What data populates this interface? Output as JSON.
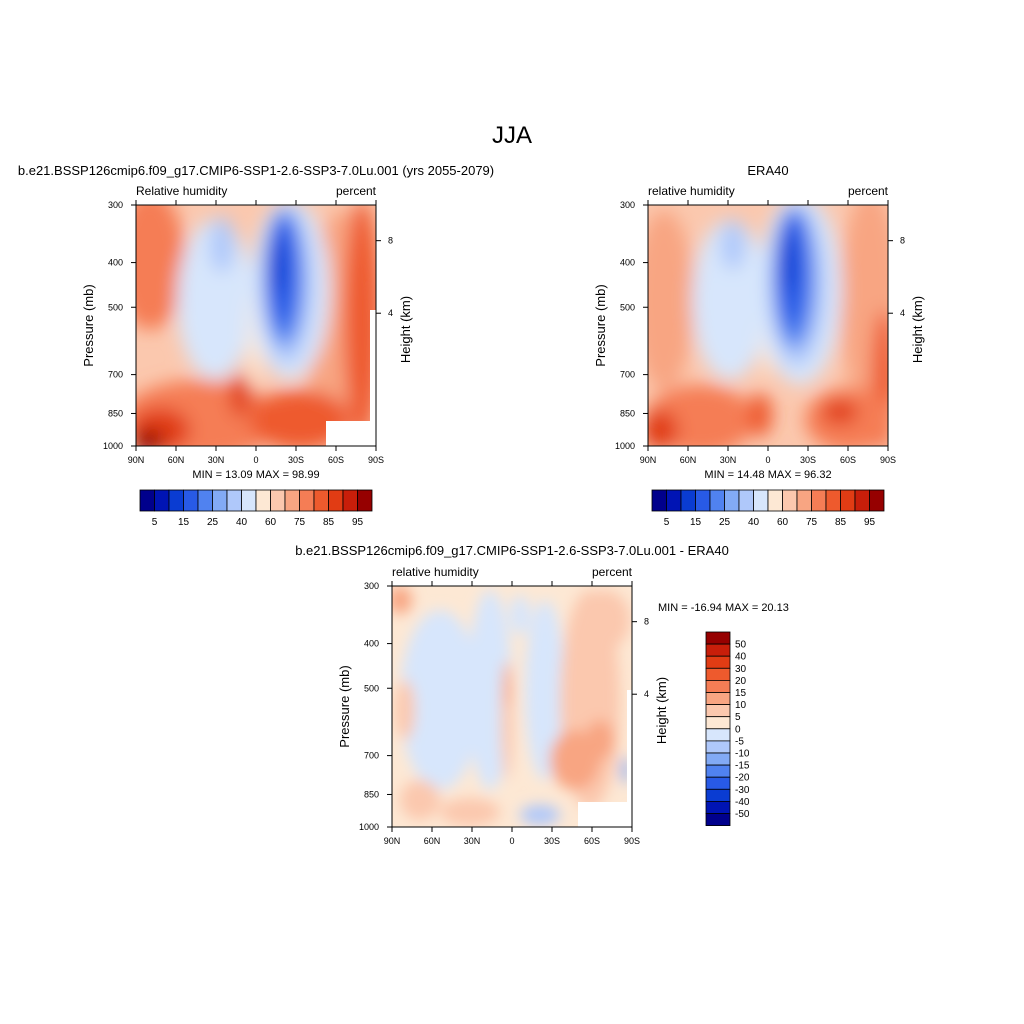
{
  "figure": {
    "title": "JJA"
  },
  "colors": {
    "abs_levels": [
      "#00008c",
      "#0014b4",
      "#0a3cd2",
      "#285ae6",
      "#5082f0",
      "#82aaf5",
      "#afc8fa",
      "#d7e6fc",
      "#fde8d4",
      "#fbc8ae",
      "#f8a582",
      "#f57d55",
      "#ee5a2d",
      "#e13c14",
      "#c81e0a",
      "#960000"
    ],
    "diff_levels": [
      "#00008c",
      "#0014b4",
      "#0a3cd2",
      "#285ae6",
      "#5082f0",
      "#82aaf5",
      "#afc8fa",
      "#d7e6fc",
      "#fde8d4",
      "#fbc8ae",
      "#f8a582",
      "#f57d55",
      "#ee5a2d",
      "#e13c14",
      "#c81e0a",
      "#960000"
    ]
  },
  "chart_data": [
    {
      "type": "heatmap",
      "title": "b.e21.BSSP126cmip6.f09_g17.CMIP6-SSP1-2.6-SSP3-7.0Lu.001 (yrs 2055-2079)",
      "left_label": "Relative humidity",
      "right_label": "percent",
      "ylabel": "Pressure (mb)",
      "ylabel_right": "Height (km)",
      "x_ticks": [
        "90N",
        "60N",
        "30N",
        "0",
        "30S",
        "60S",
        "90S"
      ],
      "y_ticks": [
        "300",
        "400",
        "500",
        "700",
        "850",
        "1000"
      ],
      "y_right_ticks": [
        "8",
        "4"
      ],
      "stats": "MIN =  13.09  MAX =  98.99",
      "colorbar_labels": [
        "5",
        "15",
        "25",
        "40",
        "60",
        "75",
        "85",
        "95"
      ],
      "xlim": [
        90,
        -90
      ],
      "ylim": [
        1000,
        300
      ],
      "log_pressure": true
    },
    {
      "type": "heatmap",
      "title": "ERA40",
      "left_label": "relative humidity",
      "right_label": "percent",
      "ylabel": "Pressure (mb)",
      "ylabel_right": "Height (km)",
      "x_ticks": [
        "90N",
        "60N",
        "30N",
        "0",
        "30S",
        "60S",
        "90S"
      ],
      "y_ticks": [
        "300",
        "400",
        "500",
        "700",
        "850",
        "1000"
      ],
      "y_right_ticks": [
        "8",
        "4"
      ],
      "stats": "MIN =  14.48  MAX =  96.32",
      "colorbar_labels": [
        "5",
        "15",
        "25",
        "40",
        "60",
        "75",
        "85",
        "95"
      ],
      "xlim": [
        90,
        -90
      ],
      "ylim": [
        1000,
        300
      ],
      "log_pressure": true
    },
    {
      "type": "heatmap",
      "title": "b.e21.BSSP126cmip6.f09_g17.CMIP6-SSP1-2.6-SSP3-7.0Lu.001 - ERA40",
      "left_label": "relative humidity",
      "right_label": "percent",
      "ylabel": "Pressure (mb)",
      "ylabel_right": "Height (km)",
      "x_ticks": [
        "90N",
        "60N",
        "30N",
        "0",
        "30S",
        "60S",
        "90S"
      ],
      "y_ticks": [
        "300",
        "400",
        "500",
        "700",
        "850",
        "1000"
      ],
      "y_right_ticks": [
        "8",
        "4"
      ],
      "stats": "MIN = -16.94  MAX =  20.13",
      "colorbar_labels": [
        "50",
        "40",
        "30",
        "20",
        "15",
        "10",
        "5",
        "0",
        "-5",
        "-10",
        "-15",
        "-20",
        "-30",
        "-40",
        "-50"
      ],
      "xlim": [
        90,
        -90
      ],
      "ylim": [
        1000,
        300
      ],
      "log_pressure": true
    }
  ]
}
